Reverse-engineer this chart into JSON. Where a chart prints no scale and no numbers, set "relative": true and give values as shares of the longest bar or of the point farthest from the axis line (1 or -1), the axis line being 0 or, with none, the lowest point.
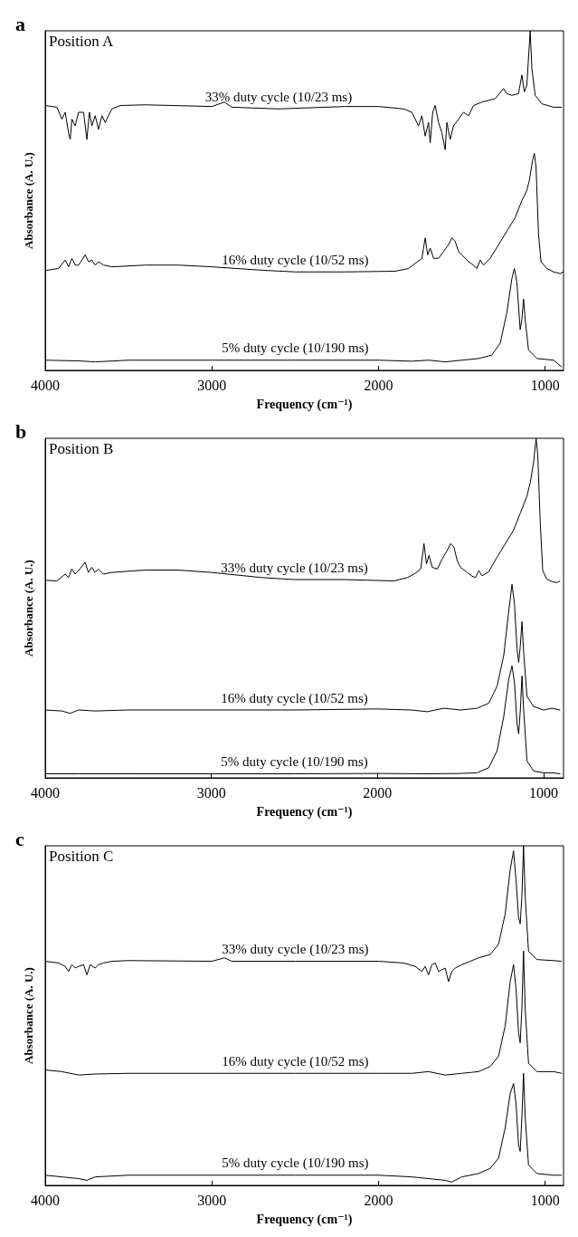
{
  "chart_data": [
    {
      "type": "line",
      "title": "a",
      "annotations": [
        "Position A"
      ],
      "xlabel": "Frequency (cm⁻¹)",
      "ylabel": "Absorbance (A. U.)",
      "relative": true,
      "xlim": [
        4000,
        890
      ],
      "xticks": [
        4000,
        3000,
        2000,
        1000
      ],
      "series": [
        {
          "name": "33% duty cycle (10/23 ms)",
          "color": "#000000",
          "x": [
            4000,
            3930,
            3900,
            3880,
            3860,
            3850,
            3840,
            3820,
            3800,
            3770,
            3750,
            3735,
            3720,
            3700,
            3680,
            3660,
            3640,
            3600,
            3550,
            3400,
            3000,
            2925,
            2880,
            2600,
            2200,
            2000,
            1850,
            1800,
            1760,
            1740,
            1720,
            1700,
            1690,
            1675,
            1660,
            1640,
            1620,
            1600,
            1590,
            1570,
            1550,
            1520,
            1490,
            1460,
            1430,
            1380,
            1300,
            1250,
            1230,
            1200,
            1160,
            1140,
            1125,
            1110,
            1090,
            1080,
            1060,
            1020,
            950,
            900
          ],
          "values": [
            0.78,
            0.775,
            0.74,
            0.76,
            0.7,
            0.68,
            0.74,
            0.72,
            0.76,
            0.76,
            0.68,
            0.76,
            0.72,
            0.75,
            0.71,
            0.75,
            0.73,
            0.77,
            0.78,
            0.782,
            0.777,
            0.79,
            0.775,
            0.77,
            0.777,
            0.777,
            0.77,
            0.76,
            0.72,
            0.75,
            0.69,
            0.73,
            0.67,
            0.76,
            0.78,
            0.73,
            0.7,
            0.65,
            0.73,
            0.68,
            0.72,
            0.74,
            0.76,
            0.75,
            0.78,
            0.79,
            0.8,
            0.83,
            0.815,
            0.81,
            0.815,
            0.87,
            0.82,
            0.84,
            1.0,
            0.89,
            0.81,
            0.785,
            0.775,
            0.775
          ]
        },
        {
          "name": "16% duty cycle (10/52 ms)",
          "color": "#000000",
          "x": [
            4000,
            3920,
            3880,
            3860,
            3840,
            3820,
            3800,
            3760,
            3740,
            3720,
            3700,
            3680,
            3650,
            3600,
            3400,
            3200,
            3000,
            2700,
            2500,
            2200,
            1900,
            1820,
            1780,
            1740,
            1720,
            1705,
            1690,
            1670,
            1640,
            1610,
            1580,
            1560,
            1540,
            1520,
            1500,
            1460,
            1430,
            1410,
            1390,
            1370,
            1330,
            1280,
            1230,
            1180,
            1140,
            1110,
            1095,
            1075,
            1065,
            1055,
            1040,
            1025,
            990,
            950,
            910,
            890
          ],
          "values": [
            0.294,
            0.3,
            0.325,
            0.305,
            0.33,
            0.31,
            0.31,
            0.34,
            0.32,
            0.325,
            0.31,
            0.32,
            0.31,
            0.305,
            0.31,
            0.31,
            0.305,
            0.295,
            0.29,
            0.29,
            0.292,
            0.3,
            0.315,
            0.33,
            0.39,
            0.34,
            0.36,
            0.33,
            0.33,
            0.35,
            0.37,
            0.39,
            0.38,
            0.35,
            0.34,
            0.32,
            0.31,
            0.3,
            0.325,
            0.31,
            0.33,
            0.37,
            0.41,
            0.45,
            0.5,
            0.53,
            0.56,
            0.62,
            0.639,
            0.6,
            0.4,
            0.32,
            0.3,
            0.29,
            0.285,
            0.29
          ]
        },
        {
          "name": "5% duty cycle (10/190 ms)",
          "color": "#000000",
          "x": [
            4000,
            3800,
            3700,
            3500,
            3000,
            2500,
            2000,
            1800,
            1700,
            1600,
            1500,
            1400,
            1320,
            1270,
            1230,
            1200,
            1185,
            1170,
            1150,
            1140,
            1130,
            1120,
            1100,
            1050,
            950,
            900
          ],
          "values": [
            0.03,
            0.028,
            0.025,
            0.03,
            0.03,
            0.03,
            0.03,
            0.027,
            0.03,
            0.025,
            0.03,
            0.035,
            0.045,
            0.08,
            0.17,
            0.27,
            0.3,
            0.26,
            0.12,
            0.15,
            0.21,
            0.15,
            0.06,
            0.035,
            0.03,
            0.01
          ]
        }
      ]
    },
    {
      "type": "line",
      "title": "b",
      "annotations": [
        "Position B"
      ],
      "xlabel": "Frequency (cm⁻¹)",
      "ylabel": "Absorbance (A. U.)",
      "relative": true,
      "xlim": [
        4000,
        880
      ],
      "xticks": [
        4000,
        3000,
        2000,
        1000
      ],
      "series": [
        {
          "name": "33% duty cycle (10/23 ms)",
          "color": "#000000",
          "x": [
            4000,
            3930,
            3880,
            3860,
            3840,
            3820,
            3800,
            3760,
            3740,
            3720,
            3700,
            3680,
            3650,
            3600,
            3400,
            3200,
            3000,
            2700,
            2500,
            2200,
            1900,
            1820,
            1780,
            1740,
            1720,
            1705,
            1690,
            1670,
            1640,
            1610,
            1580,
            1560,
            1540,
            1520,
            1500,
            1460,
            1430,
            1410,
            1390,
            1370,
            1330,
            1280,
            1230,
            1180,
            1140,
            1100,
            1080,
            1060,
            1045,
            1035,
            1020,
            1005,
            980,
            950,
            920,
            900
          ],
          "values": [
            0.582,
            0.58,
            0.6,
            0.59,
            0.615,
            0.6,
            0.61,
            0.635,
            0.605,
            0.62,
            0.605,
            0.615,
            0.6,
            0.605,
            0.612,
            0.612,
            0.605,
            0.59,
            0.584,
            0.584,
            0.58,
            0.59,
            0.6,
            0.615,
            0.69,
            0.63,
            0.655,
            0.62,
            0.615,
            0.645,
            0.67,
            0.69,
            0.68,
            0.64,
            0.62,
            0.605,
            0.594,
            0.59,
            0.61,
            0.595,
            0.607,
            0.65,
            0.69,
            0.73,
            0.78,
            0.83,
            0.87,
            0.93,
            1.0,
            0.95,
            0.75,
            0.61,
            0.585,
            0.578,
            0.575,
            0.58
          ]
        },
        {
          "name": "16% duty cycle (10/52 ms)",
          "color": "#000000",
          "x": [
            4000,
            3900,
            3850,
            3800,
            3700,
            3500,
            3000,
            2500,
            2000,
            1800,
            1700,
            1600,
            1500,
            1400,
            1330,
            1280,
            1240,
            1210,
            1190,
            1175,
            1160,
            1150,
            1140,
            1130,
            1120,
            1100,
            1060,
            1000,
            950,
            900
          ],
          "values": [
            0.2,
            0.197,
            0.19,
            0.2,
            0.197,
            0.2,
            0.2,
            0.2,
            0.203,
            0.2,
            0.195,
            0.205,
            0.2,
            0.205,
            0.22,
            0.27,
            0.36,
            0.49,
            0.57,
            0.51,
            0.38,
            0.34,
            0.39,
            0.46,
            0.37,
            0.24,
            0.21,
            0.2,
            0.205,
            0.2
          ]
        },
        {
          "name": "5% duty cycle (10/190 ms)",
          "color": "#000000",
          "x": [
            4000,
            3800,
            3500,
            3000,
            2500,
            2000,
            1700,
            1500,
            1400,
            1330,
            1280,
            1240,
            1210,
            1190,
            1175,
            1160,
            1150,
            1140,
            1130,
            1120,
            1100,
            1060,
            1000,
            950,
            900
          ],
          "values": [
            0.012,
            0.012,
            0.012,
            0.012,
            0.012,
            0.013,
            0.012,
            0.013,
            0.015,
            0.03,
            0.08,
            0.18,
            0.29,
            0.33,
            0.28,
            0.16,
            0.13,
            0.2,
            0.3,
            0.2,
            0.05,
            0.02,
            0.015,
            0.015,
            0.012
          ]
        }
      ]
    },
    {
      "type": "line",
      "title": "c",
      "annotations": [
        "Position C"
      ],
      "xlabel": "Frequency (cm⁻¹)",
      "ylabel": "Absorbance (A. U.)",
      "relative": true,
      "xlim": [
        4000,
        890
      ],
      "xticks": [
        4000,
        3000,
        2000,
        1000
      ],
      "series": [
        {
          "name": "33% duty cycle (10/23 ms)",
          "color": "#000000",
          "x": [
            4000,
            3920,
            3880,
            3860,
            3840,
            3820,
            3800,
            3770,
            3750,
            3730,
            3700,
            3680,
            3650,
            3600,
            3500,
            3000,
            2925,
            2880,
            2500,
            2000,
            1850,
            1780,
            1740,
            1720,
            1700,
            1680,
            1660,
            1640,
            1600,
            1580,
            1560,
            1540,
            1500,
            1450,
            1400,
            1330,
            1280,
            1240,
            1210,
            1190,
            1175,
            1160,
            1150,
            1140,
            1130,
            1120,
            1100,
            1050,
            950,
            900
          ],
          "values": [
            0.66,
            0.655,
            0.645,
            0.63,
            0.65,
            0.64,
            0.645,
            0.65,
            0.62,
            0.65,
            0.64,
            0.65,
            0.655,
            0.66,
            0.662,
            0.66,
            0.67,
            0.66,
            0.66,
            0.66,
            0.655,
            0.645,
            0.63,
            0.645,
            0.62,
            0.65,
            0.655,
            0.63,
            0.64,
            0.6,
            0.63,
            0.64,
            0.65,
            0.66,
            0.67,
            0.68,
            0.71,
            0.8,
            0.93,
            0.985,
            0.9,
            0.79,
            0.77,
            0.85,
            1.0,
            0.85,
            0.69,
            0.665,
            0.662,
            0.66
          ]
        },
        {
          "name": "16% duty cycle (10/52 ms)",
          "color": "#000000",
          "x": [
            4000,
            3900,
            3800,
            3700,
            3500,
            3000,
            2500,
            2000,
            1800,
            1700,
            1600,
            1500,
            1400,
            1330,
            1280,
            1240,
            1210,
            1190,
            1175,
            1160,
            1150,
            1140,
            1130,
            1120,
            1100,
            1050,
            950,
            900
          ],
          "values": [
            0.34,
            0.335,
            0.325,
            0.328,
            0.33,
            0.33,
            0.33,
            0.33,
            0.33,
            0.335,
            0.325,
            0.33,
            0.335,
            0.35,
            0.38,
            0.47,
            0.6,
            0.65,
            0.58,
            0.45,
            0.42,
            0.52,
            0.69,
            0.52,
            0.36,
            0.335,
            0.335,
            0.33
          ]
        },
        {
          "name": "5% duty cycle (10/190 ms)",
          "color": "#000000",
          "x": [
            4000,
            3900,
            3800,
            3750,
            3700,
            3500,
            3000,
            2500,
            2000,
            1800,
            1700,
            1600,
            1560,
            1500,
            1400,
            1330,
            1280,
            1240,
            1210,
            1190,
            1175,
            1160,
            1150,
            1140,
            1130,
            1120,
            1100,
            1050,
            950,
            900
          ],
          "values": [
            0.03,
            0.025,
            0.02,
            0.015,
            0.025,
            0.03,
            0.03,
            0.03,
            0.03,
            0.025,
            0.02,
            0.015,
            0.01,
            0.025,
            0.035,
            0.05,
            0.08,
            0.17,
            0.27,
            0.3,
            0.24,
            0.12,
            0.1,
            0.2,
            0.33,
            0.2,
            0.06,
            0.035,
            0.03,
            0.03
          ]
        }
      ]
    }
  ]
}
